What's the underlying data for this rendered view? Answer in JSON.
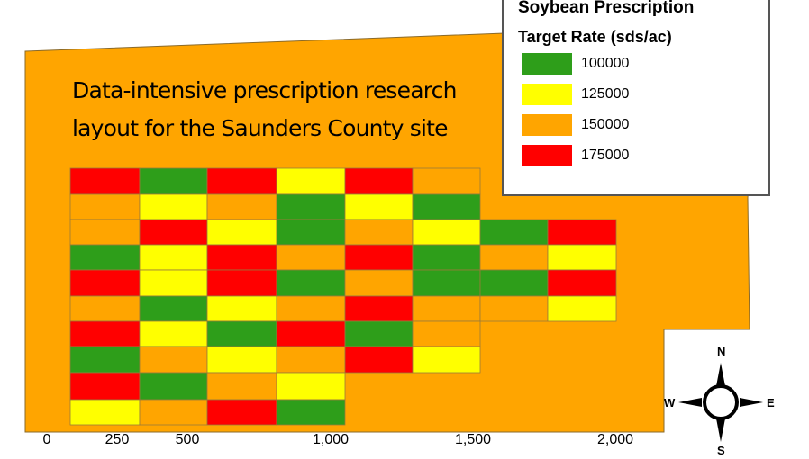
{
  "title_lines": [
    "Data-intensive prescription research",
    "layout for the Saunders County site"
  ],
  "legend": {
    "title": "Soybean Prescription",
    "subtitle": "Target Rate (sds/ac)",
    "items": [
      {
        "label": "100000",
        "color": "#2E9E1A",
        "code": "G"
      },
      {
        "label": "125000",
        "color": "#FFFF00",
        "code": "Y"
      },
      {
        "label": "150000",
        "color": "#FFA500",
        "code": "O"
      },
      {
        "label": "175000",
        "color": "#FF0000",
        "code": "R"
      }
    ]
  },
  "field_color": "#FFA500",
  "scale_labels": [
    "0",
    "250",
    "500",
    "1,000",
    "1,500",
    "2,000"
  ],
  "compass": {
    "n": "N",
    "s": "S",
    "e": "E",
    "w": "W"
  },
  "grid_rows": [
    "RGRYRO----",
    "OYOGYG----",
    "ORYGOYGR--",
    "GYRORGOY--",
    "RYRGOGGR--",
    "OGYOROOY--",
    "RYGRGO----",
    "GOYORY----",
    "RGOY------",
    "YORG------"
  ]
}
